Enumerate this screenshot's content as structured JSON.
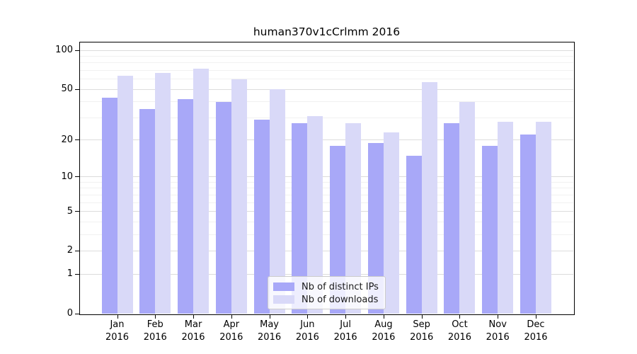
{
  "chart_data": {
    "type": "bar",
    "title": "human370v1cCrlmm 2016",
    "categories": [
      "Jan",
      "Feb",
      "Mar",
      "Apr",
      "May",
      "Jun",
      "Jul",
      "Aug",
      "Sep",
      "Oct",
      "Nov",
      "Dec"
    ],
    "year": "2016",
    "series": [
      {
        "name": "Nb of distinct IPs",
        "color": "#a8a8f8",
        "values": [
          43,
          35,
          42,
          40,
          29,
          27,
          18,
          19,
          15,
          27,
          18,
          22
        ]
      },
      {
        "name": "Nb of downloads",
        "color": "#d9d9f8",
        "values": [
          64,
          67,
          72,
          60,
          50,
          31,
          27,
          23,
          57,
          40,
          28,
          28
        ]
      }
    ],
    "y_axis": {
      "scale": "log(x+1)",
      "tick_labels": [
        0,
        1,
        2,
        5,
        10,
        20,
        50,
        100
      ],
      "minor_gridlines": [
        3,
        4,
        6,
        7,
        8,
        9,
        30,
        40,
        60,
        70,
        80,
        90
      ],
      "range_top": 100
    },
    "legend": {
      "position": "bottom-center",
      "entries": [
        "Nb of distinct IPs",
        "Nb of downloads"
      ]
    },
    "grid": "horizontal-major-and-minor",
    "colors": {
      "distinct_ips_bar": "#a8a8f8",
      "downloads_bar": "#d9d9f8",
      "major_gridline": "#dcdcdc",
      "minor_gridline": "#f1f1f1"
    }
  }
}
